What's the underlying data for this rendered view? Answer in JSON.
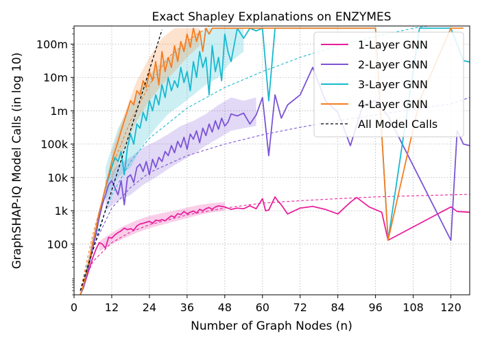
{
  "chart_data": {
    "type": "line",
    "title": "Exact Shapley Explanations on ENZYMES",
    "xlabel": "Number of Graph Nodes (n)",
    "ylabel": "GraphSHAP-IQ Model Calls (in log 10)",
    "xlim": [
      0,
      126
    ],
    "ylim": [
      3,
      350000000
    ],
    "yscale": "log",
    "grid": true,
    "legend_position": "top-right",
    "x_ticks": [
      0,
      12,
      24,
      36,
      48,
      60,
      72,
      84,
      96,
      108,
      120
    ],
    "x_tick_labels": [
      "0",
      "12",
      "24",
      "36",
      "48",
      "60",
      "72",
      "84",
      "96",
      "108",
      "120"
    ],
    "y_ticks": [
      100,
      1000,
      10000,
      100000,
      1000000,
      10000000,
      100000000
    ],
    "y_tick_labels": [
      "100",
      "1k",
      "10k",
      "100k",
      "1m",
      "10m",
      "100m"
    ],
    "series": [
      {
        "name": "1-Layer GNN",
        "color": "#e91e9c",
        "x": [
          2,
          3,
          4,
          5,
          6,
          7,
          8,
          9,
          10,
          11,
          12,
          13,
          14,
          15,
          16,
          17,
          18,
          19,
          20,
          21,
          22,
          23,
          24,
          25,
          26,
          27,
          28,
          29,
          30,
          31,
          32,
          33,
          34,
          35,
          36,
          37,
          38,
          39,
          40,
          41,
          42,
          43,
          44,
          45,
          46,
          47,
          48,
          50,
          52,
          54,
          56,
          58,
          60,
          61,
          62,
          64,
          65,
          66,
          68,
          72,
          76,
          80,
          84,
          88,
          90,
          94,
          98,
          100,
          120,
          122,
          126
        ],
        "values": [
          3,
          5,
          10,
          20,
          40,
          70,
          110,
          100,
          75,
          160,
          150,
          190,
          220,
          250,
          300,
          270,
          290,
          260,
          350,
          400,
          420,
          450,
          480,
          420,
          520,
          500,
          540,
          500,
          600,
          700,
          640,
          820,
          760,
          950,
          800,
          900,
          980,
          850,
          1100,
          1000,
          1150,
          1250,
          1100,
          1300,
          1400,
          1350,
          1300,
          1100,
          1200,
          1150,
          1400,
          1150,
          2300,
          1000,
          1050,
          2600,
          1900,
          1500,
          800,
          1200,
          1350,
          1100,
          800,
          1800,
          2500,
          1300,
          900,
          130,
          1300,
          950,
          900
        ]
      },
      {
        "name": "2-Layer GNN",
        "color": "#7b52d6",
        "x": [
          2,
          3,
          4,
          5,
          6,
          7,
          8,
          9,
          10,
          11,
          12,
          13,
          14,
          15,
          16,
          17,
          18,
          19,
          20,
          21,
          22,
          23,
          24,
          25,
          26,
          27,
          28,
          29,
          30,
          31,
          32,
          33,
          34,
          35,
          36,
          37,
          38,
          39,
          40,
          41,
          42,
          43,
          44,
          45,
          46,
          47,
          48,
          49,
          50,
          52,
          54,
          56,
          58,
          60,
          62,
          64,
          66,
          68,
          72,
          76,
          80,
          84,
          88,
          92,
          96,
          100,
          120,
          122,
          124,
          126
        ],
        "values": [
          3,
          5,
          12,
          30,
          80,
          200,
          600,
          1500,
          3000,
          6000,
          8000,
          5000,
          3000,
          8000,
          1500,
          10000,
          12000,
          7000,
          20000,
          25000,
          15000,
          30000,
          12000,
          35000,
          20000,
          40000,
          30000,
          60000,
          45000,
          90000,
          55000,
          120000,
          80000,
          160000,
          70000,
          200000,
          140000,
          250000,
          110000,
          300000,
          180000,
          400000,
          230000,
          500000,
          280000,
          600000,
          350000,
          450000,
          800000,
          700000,
          850000,
          400000,
          750000,
          2500000,
          45000,
          3000000,
          600000,
          1500000,
          3000000,
          20000000,
          2000000,
          900000,
          90000,
          1500000,
          2000000,
          700000,
          130,
          250000,
          100000,
          90000
        ]
      },
      {
        "name": "3-Layer GNN",
        "color": "#17b8cf",
        "x": [
          2,
          3,
          4,
          5,
          6,
          7,
          8,
          9,
          10,
          11,
          12,
          13,
          14,
          15,
          16,
          17,
          18,
          19,
          20,
          21,
          22,
          23,
          24,
          25,
          26,
          27,
          28,
          29,
          30,
          31,
          32,
          33,
          34,
          35,
          36,
          37,
          38,
          39,
          40,
          41,
          42,
          43,
          44,
          45,
          46,
          47,
          48,
          49,
          50,
          52,
          54,
          56,
          58,
          60,
          62,
          64,
          66,
          68,
          72,
          76,
          80,
          84,
          88,
          92,
          96,
          100,
          110,
          120,
          124,
          126
        ],
        "values": [
          3,
          6,
          15,
          40,
          120,
          300,
          900,
          2000,
          5000,
          10000,
          20000,
          40000,
          30000,
          60000,
          12000,
          80000,
          200000,
          100000,
          400000,
          300000,
          900000,
          500000,
          2000000,
          1000000,
          3000000,
          1500000,
          6000000,
          2500000,
          10000000,
          4000000,
          8000000,
          5000000,
          20000000,
          7000000,
          15000000,
          4000000,
          30000000,
          10000000,
          60000000,
          20000000,
          40000000,
          3000000,
          90000000,
          15000000,
          40000000,
          8000000,
          200000000,
          60000000,
          30000000,
          300000000,
          150000000,
          300000000,
          250000000,
          300000000,
          2000000,
          300000000,
          300000000,
          300000000,
          300000000,
          300000000,
          300000000,
          300000000,
          300000000,
          300000000,
          300000000,
          130,
          300000000,
          300000000,
          32000000,
          29000000
        ]
      },
      {
        "name": "4-Layer GNN",
        "color": "#f57c1f",
        "x": [
          2,
          3,
          4,
          5,
          6,
          7,
          8,
          9,
          10,
          11,
          12,
          13,
          14,
          15,
          16,
          17,
          18,
          19,
          20,
          21,
          22,
          23,
          24,
          25,
          26,
          27,
          28,
          29,
          30,
          31,
          32,
          33,
          34,
          35,
          36,
          37,
          38,
          39,
          40,
          41,
          42,
          43,
          44,
          46,
          48,
          50,
          54,
          58,
          62,
          64,
          66,
          68,
          72,
          80,
          84,
          88,
          96,
          100,
          110,
          120,
          124
        ],
        "values": [
          3,
          6,
          15,
          40,
          120,
          300,
          900,
          2000,
          5000,
          12000,
          30000,
          60000,
          120000,
          250000,
          500000,
          1000000,
          2000000,
          1500000,
          4000000,
          3000000,
          8000000,
          5000000,
          15000000,
          8000000,
          30000000,
          6000000,
          60000000,
          15000000,
          40000000,
          20000000,
          90000000,
          30000000,
          120000000,
          60000000,
          200000000,
          80000000,
          300000000,
          120000000,
          250000000,
          60000000,
          300000000,
          200000000,
          300000000,
          300000000,
          300000000,
          300000000,
          300000000,
          300000000,
          300000000,
          300000000,
          300000000,
          300000000,
          300000000,
          300000000,
          300000000,
          300000000,
          300000000,
          130,
          2000000,
          300000000,
          300000000
        ]
      },
      {
        "name": "All Model Calls",
        "color": "#000000",
        "dashed": true,
        "formula": "2^n",
        "x": [
          2,
          4,
          6,
          8,
          10,
          12,
          14,
          16,
          18,
          20,
          22,
          24,
          26,
          28
        ],
        "values": [
          4,
          16,
          64,
          256,
          1024,
          4096,
          16384,
          65536,
          262144,
          1048576,
          4194304,
          16777216,
          67108864,
          268435456
        ]
      }
    ],
    "reference_curves": [
      {
        "color": "#e91e9c",
        "x": [
          2,
          6,
          12,
          18,
          24,
          36,
          48,
          60,
          72,
          84,
          96,
          108,
          120,
          126
        ],
        "values": [
          4,
          30,
          110,
          230,
          380,
          750,
          1200,
          1700,
          2000,
          2300,
          2600,
          2800,
          3000,
          3100
        ]
      },
      {
        "color": "#7b52d6",
        "x": [
          2,
          6,
          12,
          18,
          24,
          36,
          48,
          60,
          72,
          84,
          96,
          108,
          120,
          126
        ],
        "values": [
          4,
          80,
          1200,
          5000,
          14000,
          45000,
          100000,
          190000,
          320000,
          500000,
          750000,
          1100000,
          1600000,
          2500000
        ]
      },
      {
        "color": "#17b8cf",
        "x": [
          2,
          6,
          12,
          18,
          24,
          36,
          48,
          60,
          72,
          84,
          96,
          108,
          120,
          126
        ],
        "values": [
          4,
          100,
          3000,
          30000,
          150000,
          1200000,
          5000000,
          15000000,
          40000000,
          90000000,
          170000000,
          300000000,
          450000000,
          550000000
        ]
      },
      {
        "color": "#f57c1f",
        "x": [
          2,
          6,
          12,
          18,
          24,
          30,
          36,
          40,
          44
        ],
        "values": [
          4,
          200,
          20000,
          500000,
          6000000,
          40000000,
          120000000,
          220000000,
          400000000
        ]
      }
    ],
    "bands": [
      {
        "color": "#e91e9c",
        "x": [
          8,
          12,
          16,
          20,
          24,
          28,
          32,
          36,
          40,
          44,
          48
        ],
        "low": [
          60,
          100,
          150,
          220,
          300,
          380,
          480,
          600,
          750,
          900,
          1000
        ],
        "high": [
          120,
          220,
          350,
          520,
          700,
          850,
          1000,
          1250,
          1500,
          1700,
          1800
        ]
      },
      {
        "color": "#7b52d6",
        "x": [
          10,
          14,
          18,
          22,
          26,
          30,
          34,
          38,
          42,
          46,
          50,
          54,
          58
        ],
        "low": [
          1000,
          2000,
          3000,
          6000,
          10000,
          18000,
          30000,
          50000,
          90000,
          150000,
          250000,
          300000,
          350000
        ],
        "high": [
          8000,
          25000,
          40000,
          80000,
          120000,
          200000,
          350000,
          500000,
          800000,
          1500000,
          2500000,
          2000000,
          2500000
        ]
      },
      {
        "color": "#17b8cf",
        "x": [
          10,
          14,
          18,
          22,
          26,
          30,
          34,
          38,
          42,
          46,
          50,
          54
        ],
        "low": [
          2000,
          10000,
          20000,
          100000,
          300000,
          800000,
          1500000,
          3000000,
          6000000,
          10000000,
          30000000,
          60000000
        ],
        "high": [
          20000,
          300000,
          1500000,
          6000000,
          20000000,
          40000000,
          80000000,
          150000000,
          300000000,
          300000000,
          300000000,
          300000000
        ]
      },
      {
        "color": "#f57c1f",
        "x": [
          12,
          16,
          20,
          24,
          28,
          32,
          36,
          40
        ],
        "low": [
          8000,
          80000,
          500000,
          2000000,
          6000000,
          15000000,
          40000000,
          90000000
        ],
        "high": [
          60000,
          800000,
          8000000,
          40000000,
          150000000,
          300000000,
          300000000,
          300000000
        ]
      }
    ]
  }
}
